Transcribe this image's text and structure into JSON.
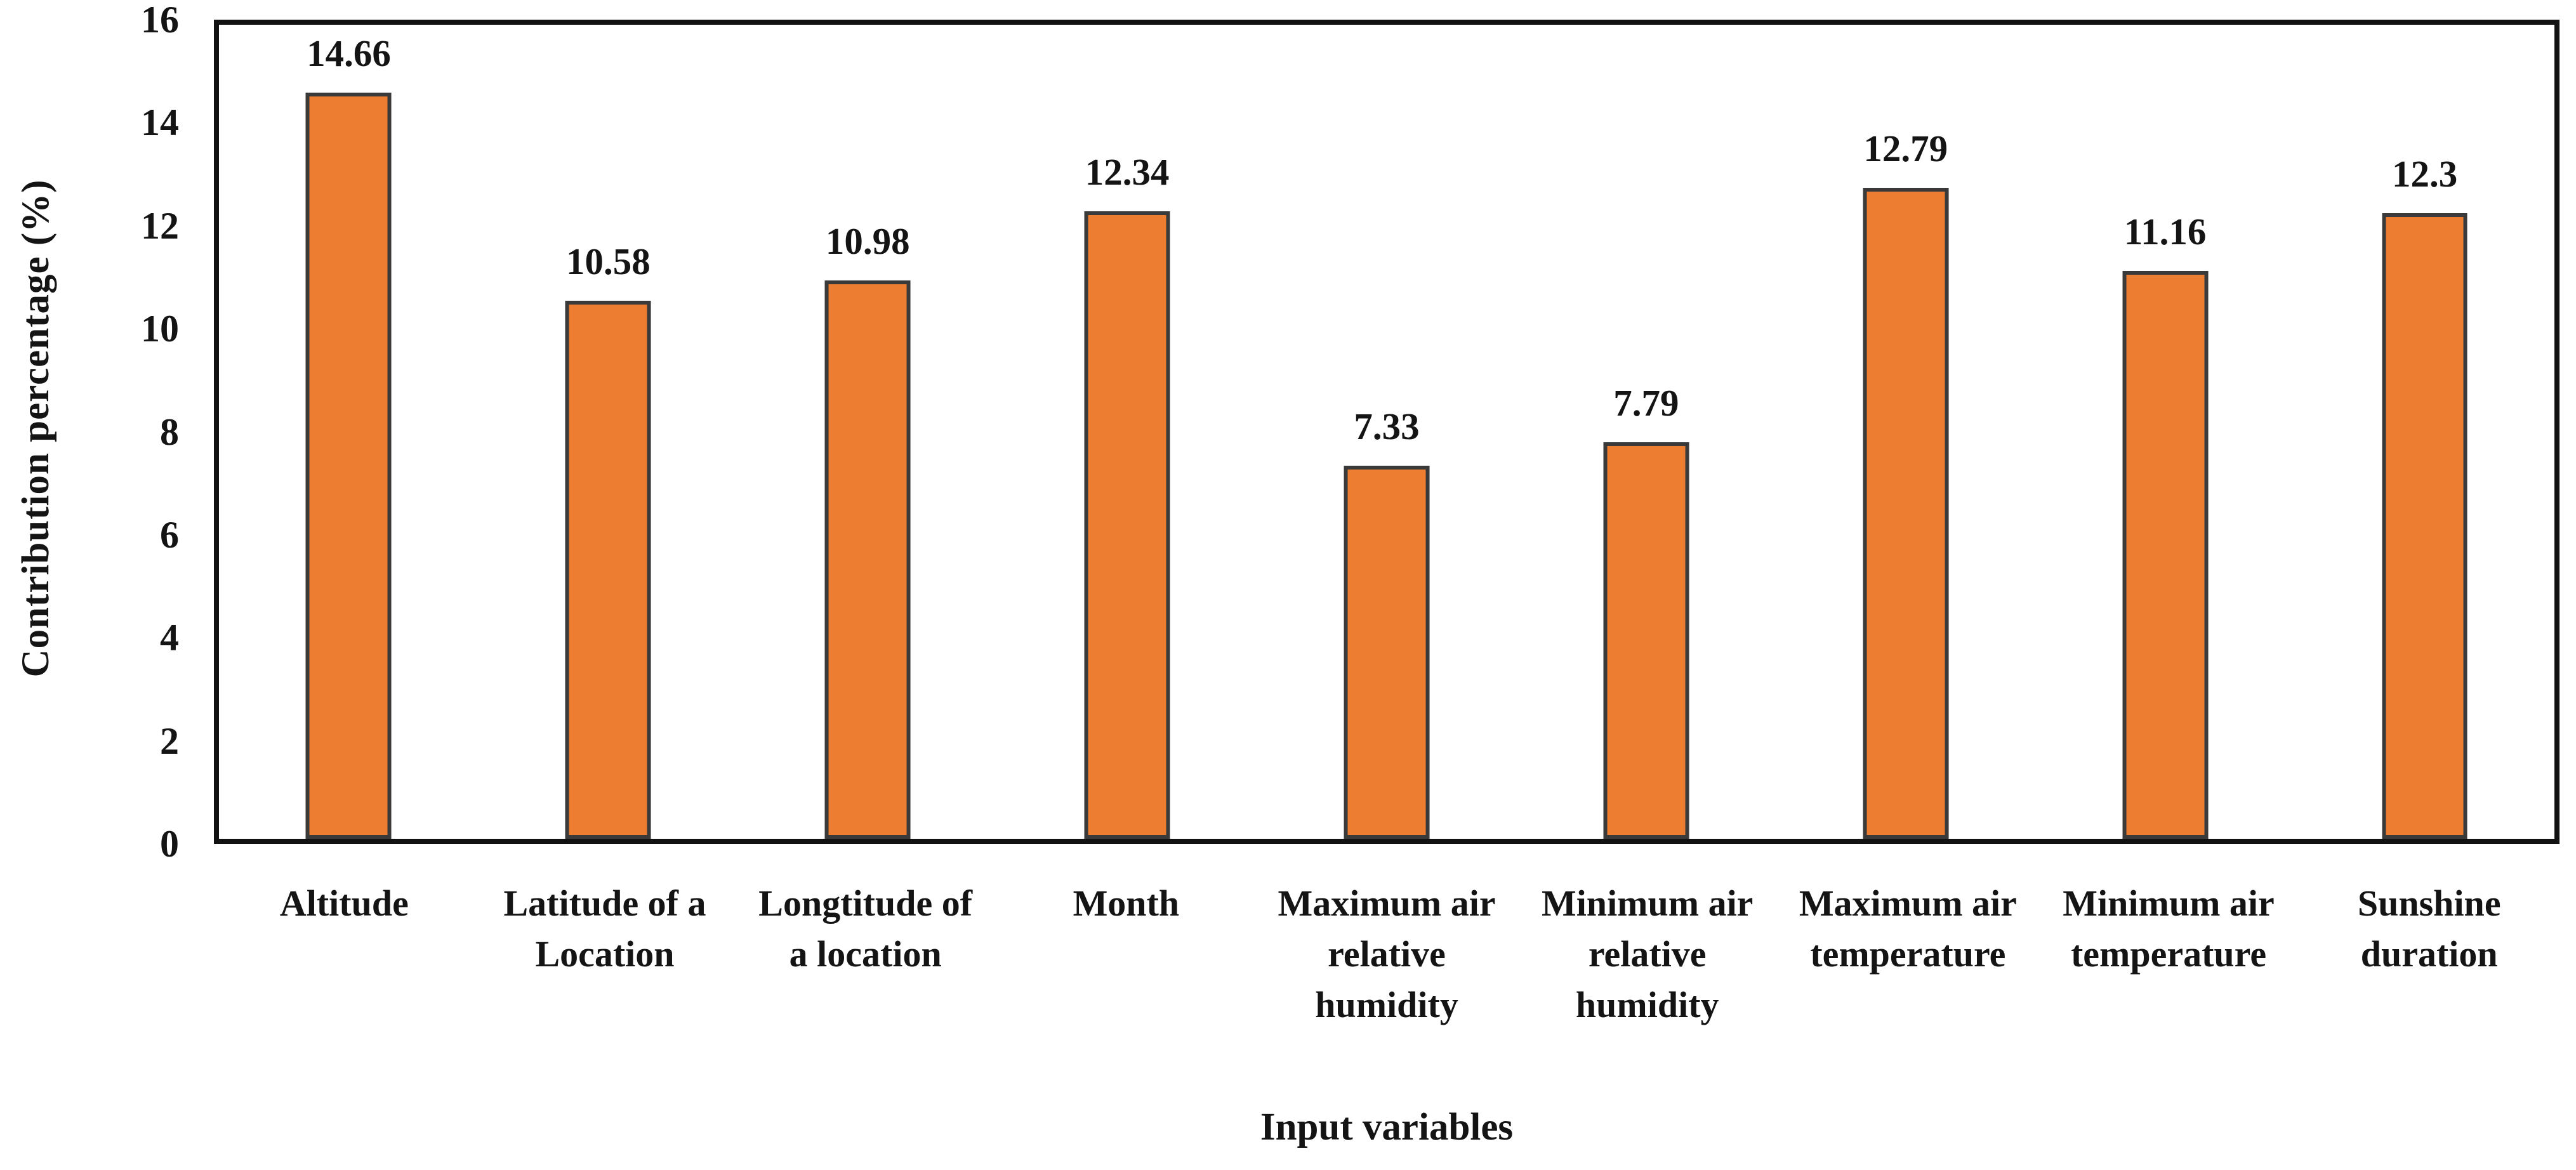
{
  "figure": {
    "background": "#FFFFFF"
  },
  "chart_data": {
    "type": "bar",
    "title": "",
    "xlabel": "Input variables",
    "ylabel": "Contribution percentage (%)",
    "categories": [
      "Altitude",
      "Latitude of a Location",
      "Longtitude of a location",
      "Month",
      "Maximum air relative humidity",
      "Minimum air relative humidity",
      "Maximum air temperature",
      "Minimum air temperature",
      "Sunshine duration"
    ],
    "values": [
      14.66,
      10.58,
      10.98,
      12.34,
      7.33,
      7.79,
      12.79,
      11.16,
      12.3
    ],
    "data_labels": [
      "14.66",
      "10.58",
      "10.98",
      "12.34",
      "7.33",
      "7.79",
      "12.79",
      "11.16",
      "12.3"
    ],
    "ylim": [
      0,
      16
    ],
    "yticks": [
      0,
      2,
      4,
      6,
      8,
      10,
      12,
      14,
      16
    ],
    "grid": false,
    "legend_position": "none",
    "bar_fill": "#ED7D31",
    "bar_border": "#3A3A3A",
    "frame_color": "#121212",
    "text_color": "#141414"
  }
}
